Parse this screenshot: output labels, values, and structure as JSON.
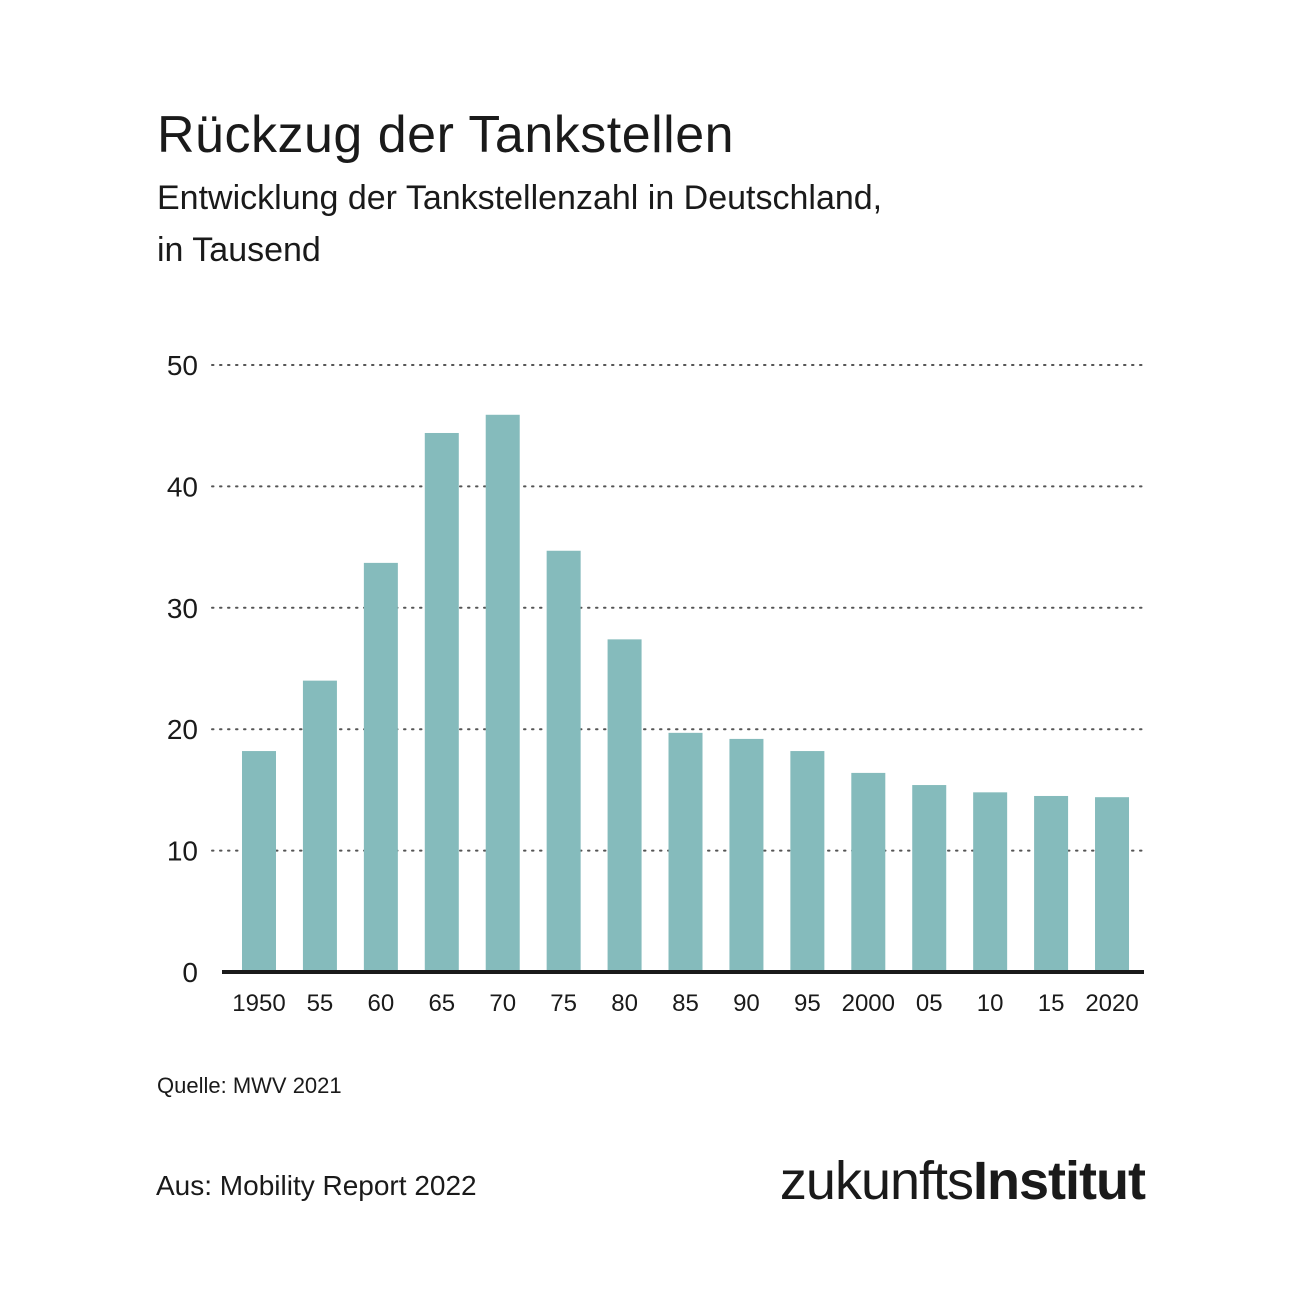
{
  "header": {
    "title": "Rückzug der Tankstellen",
    "subtitle_line1": "Entwicklung der Tankstellenzahl in Deutschland,",
    "subtitle_line2": "in Tausend"
  },
  "footer": {
    "source": "Quelle: MWV 2021",
    "publication": "Aus: Mobility Report 2022",
    "logo_light": "zukunfts",
    "logo_bold": "Institut"
  },
  "colors": {
    "bar": "#85BBBC",
    "axis": "#1a1a1a",
    "grid": "#555555"
  },
  "chart_data": {
    "type": "bar",
    "title": "Rückzug der Tankstellen",
    "subtitle": "Entwicklung der Tankstellenzahl in Deutschland, in Tausend",
    "xlabel": "",
    "ylabel": "in Tausend",
    "categories": [
      "1950",
      "55",
      "60",
      "65",
      "70",
      "75",
      "80",
      "85",
      "90",
      "95",
      "2000",
      "05",
      "10",
      "15",
      "2020"
    ],
    "values": [
      18.2,
      24.0,
      33.7,
      44.4,
      45.9,
      34.7,
      27.4,
      19.7,
      19.2,
      18.2,
      16.4,
      15.4,
      14.8,
      14.5,
      14.4
    ],
    "ylim": [
      0,
      50
    ],
    "yticks": [
      0,
      10,
      20,
      30,
      40,
      50
    ],
    "grid": "horizontal dotted",
    "legend": "none"
  }
}
